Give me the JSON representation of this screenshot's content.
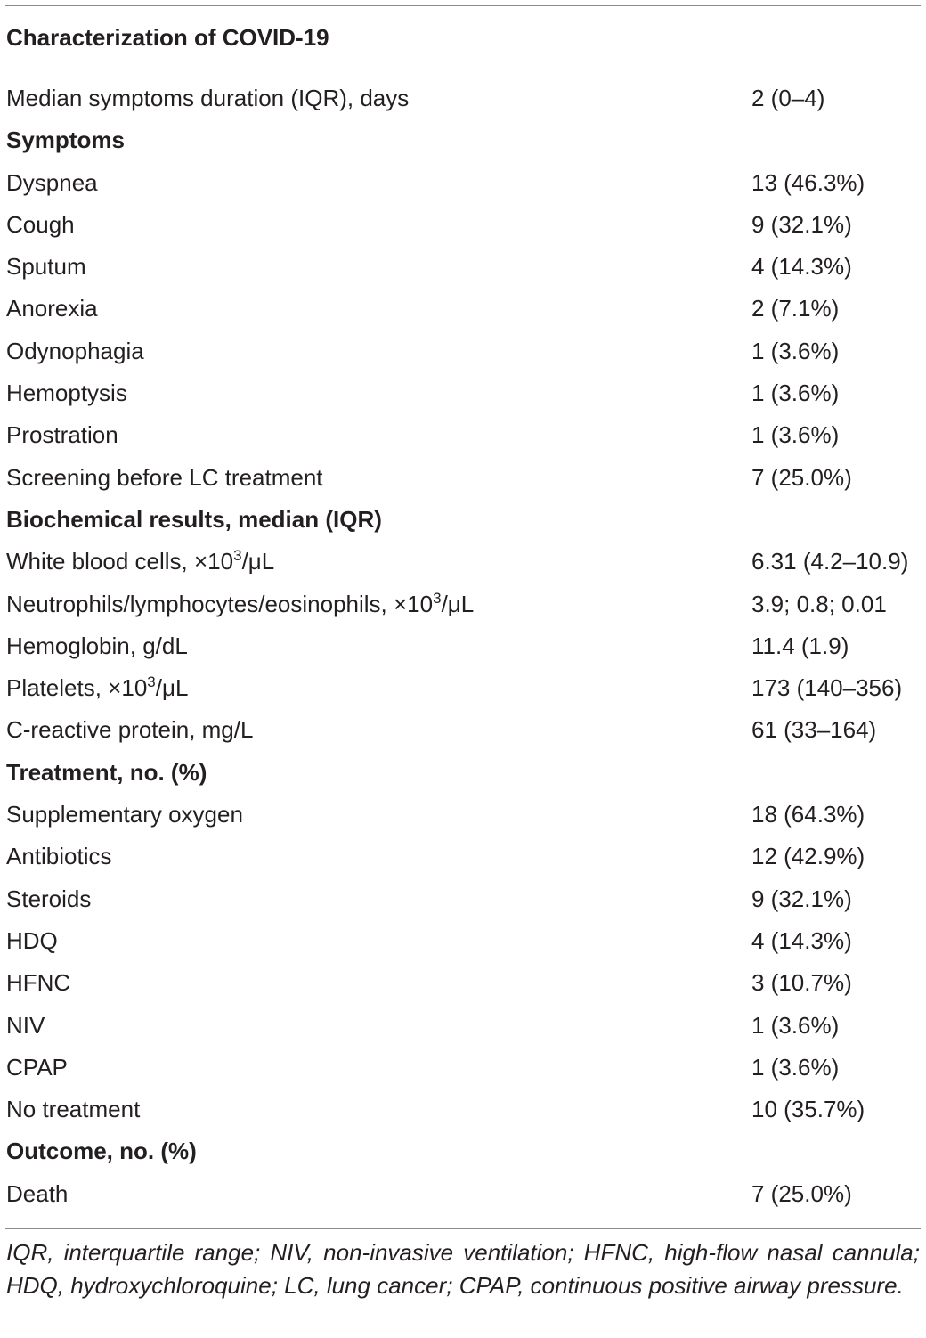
{
  "table": {
    "title": "Characterization of COVID-19",
    "rows": [
      {
        "label": "Median symptoms duration (IQR), days",
        "value": "2 (0–4)",
        "section": false
      },
      {
        "label": "Symptoms",
        "value": "",
        "section": true
      },
      {
        "label": "Dyspnea",
        "value": "13 (46.3%)",
        "section": false
      },
      {
        "label": "Cough",
        "value": "9 (32.1%)",
        "section": false
      },
      {
        "label": "Sputum",
        "value": "4 (14.3%)",
        "section": false
      },
      {
        "label": "Anorexia",
        "value": "2 (7.1%)",
        "section": false
      },
      {
        "label": "Odynophagia",
        "value": "1 (3.6%)",
        "section": false
      },
      {
        "label": "Hemoptysis",
        "value": "1 (3.6%)",
        "section": false
      },
      {
        "label": "Prostration",
        "value": "1 (3.6%)",
        "section": false
      },
      {
        "label": "Screening before LC treatment",
        "value": "7 (25.0%)",
        "section": false
      },
      {
        "label": "Biochemical results, median (IQR)",
        "value": "",
        "section": true
      },
      {
        "label_pre": "White blood cells, ×10",
        "label_sup": "3",
        "label_post": "/μL",
        "value": "6.31 (4.2–10.9)",
        "section": false
      },
      {
        "label_pre": "Neutrophils/lymphocytes/eosinophils, ×10",
        "label_sup": "3",
        "label_post": "/μL",
        "value": "3.9; 0.8; 0.01",
        "section": false
      },
      {
        "label": "Hemoglobin, g/dL",
        "value": "11.4 (1.9)",
        "section": false
      },
      {
        "label_pre": "Platelets, ×10",
        "label_sup": "3",
        "label_post": "/μL",
        "value": "173 (140–356)",
        "section": false
      },
      {
        "label": "C-reactive protein, mg/L",
        "value": "61 (33–164)",
        "section": false
      },
      {
        "label": "Treatment, no. (%)",
        "value": "",
        "section": true
      },
      {
        "label": "Supplementary oxygen",
        "value": "18 (64.3%)",
        "section": false
      },
      {
        "label": "Antibiotics",
        "value": "12 (42.9%)",
        "section": false
      },
      {
        "label": "Steroids",
        "value": "9 (32.1%)",
        "section": false
      },
      {
        "label": "HDQ",
        "value": "4 (14.3%)",
        "section": false
      },
      {
        "label": "HFNC",
        "value": "3 (10.7%)",
        "section": false
      },
      {
        "label": "NIV",
        "value": "1 (3.6%)",
        "section": false
      },
      {
        "label": "CPAP",
        "value": "1 (3.6%)",
        "section": false
      },
      {
        "label": "No treatment",
        "value": "10 (35.7%)",
        "section": false
      },
      {
        "label": "Outcome, no. (%)",
        "value": "",
        "section": true
      },
      {
        "label": "Death",
        "value": "7 (25.0%)",
        "section": false
      }
    ],
    "footnote": "IQR, interquartile range; NIV, non-invasive ventilation; HFNC, high-flow nasal cannula; HDQ, hydroxychloroquine; LC, lung cancer; CPAP, continuous positive airway pressure."
  }
}
